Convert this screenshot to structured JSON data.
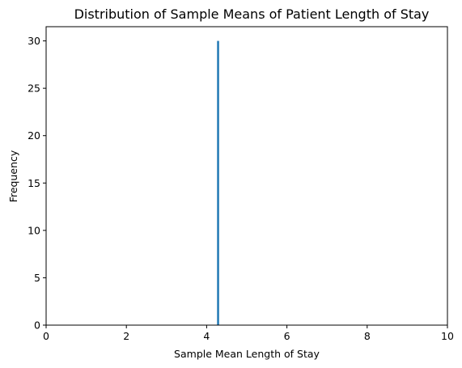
{
  "chart_data": {
    "type": "bar",
    "title": "Distribution of Sample Means of Patient Length of Stay",
    "xlabel": "Sample Mean Length of Stay",
    "ylabel": "Frequency",
    "xlim": [
      0,
      10
    ],
    "ylim": [
      0,
      31.5
    ],
    "xticks": [
      0,
      2,
      4,
      6,
      8,
      10
    ],
    "yticks": [
      0,
      5,
      10,
      15,
      20,
      25,
      30
    ],
    "grid": false,
    "legend": "none",
    "bar_color": "#1f77b4",
    "bins": [
      {
        "x0": 4.26,
        "x1": 4.31,
        "count": 30
      }
    ]
  }
}
